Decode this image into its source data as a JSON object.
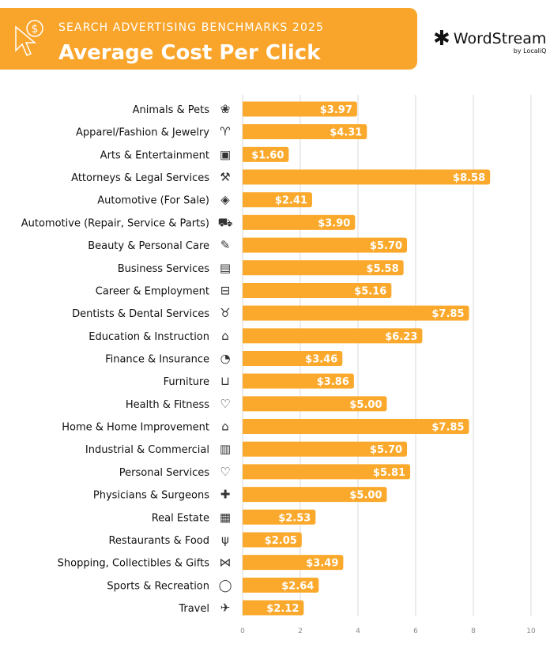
{
  "header": {
    "kicker": "SEARCH ADVERTISING BENCHMARKS 2025",
    "title": "Average Cost Per Click",
    "icon": "cursor-dollar-icon",
    "logo_text": "WordStream",
    "logo_sub": "by LocaliQ"
  },
  "colors": {
    "bar": "#FBA92C",
    "header": "#F9A52B",
    "grid": "#D9D9D9"
  },
  "chart_data": {
    "type": "bar",
    "orientation": "horizontal",
    "title": "Average Cost Per Click",
    "xlim": [
      0,
      10
    ],
    "xticks": [
      "0",
      "2",
      "4",
      "6",
      "8",
      "10"
    ],
    "grid": true,
    "categories": [
      "Animals & Pets",
      "Apparel/Fashion & Jewelry",
      "Arts & Entertainment",
      "Attorneys & Legal Services",
      "Automotive (For Sale)",
      "Automotive (Repair, Service & Parts)",
      "Beauty & Personal Care",
      "Business Services",
      "Career & Employment",
      "Dentists & Dental Services",
      "Education & Instruction",
      "Finance & Insurance",
      "Furniture",
      "Health & Fitness",
      "Home & Home Improvement",
      "Industrial & Commercial",
      "Personal Services",
      "Physicians & Surgeons",
      "Real Estate",
      "Restaurants & Food",
      "Shopping, Collectibles & Gifts",
      "Sports & Recreation",
      "Travel"
    ],
    "values": [
      3.97,
      4.31,
      1.6,
      8.58,
      2.41,
      3.9,
      5.7,
      5.58,
      5.16,
      7.85,
      6.23,
      3.46,
      3.86,
      5.0,
      7.85,
      5.7,
      5.81,
      5.0,
      2.53,
      2.05,
      3.49,
      2.64,
      2.12
    ],
    "labels": [
      "$3.97",
      "$4.31",
      "$1.60",
      "$8.58",
      "$2.41",
      "$3.90",
      "$5.70",
      "$5.58",
      "$5.16",
      "$7.85",
      "$6.23",
      "$3.46",
      "$3.86",
      "$5.00",
      "$7.85",
      "$5.70",
      "$5.81",
      "$5.00",
      "$2.53",
      "$2.05",
      "$3.49",
      "$2.64",
      "$2.12"
    ],
    "icons": [
      "paw-icon",
      "tshirt-icon",
      "picture-icon",
      "gavel-icon",
      "tag-icon",
      "car-icon",
      "brush-icon",
      "document-icon",
      "briefcase-icon",
      "tooth-icon",
      "graduation-cap-icon",
      "piggy-bank-icon",
      "armchair-icon",
      "heart-icon",
      "house-icon",
      "factory-icon",
      "hand-heart-icon",
      "medical-cross-icon",
      "storefront-icon",
      "utensils-icon",
      "gift-bow-icon",
      "ball-icon",
      "airplane-icon"
    ]
  }
}
